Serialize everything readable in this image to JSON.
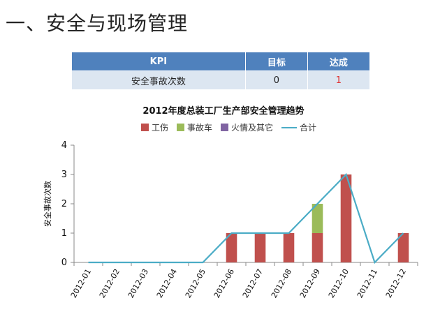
{
  "page": {
    "title": "一、安全与现场管理"
  },
  "kpi_table": {
    "headers": [
      "KPI",
      "目标",
      "达成"
    ],
    "row": {
      "kpi": "安全事故次数",
      "target": "0",
      "achieved": "1"
    }
  },
  "colors": {
    "injury": "#c0504d",
    "accident_car": "#9bbb59",
    "fire_other": "#8064a2",
    "total": "#4bacc6",
    "header_bg": "#4f81bd",
    "row_bg": "#dce6f1"
  },
  "chart_data": {
    "type": "bar",
    "stacked": true,
    "title": "2012年度总装工厂生产部安全管理趋势",
    "xlabel": "",
    "ylabel": "安全事故次数",
    "ylim": [
      0,
      4
    ],
    "yticks": [
      "0",
      "1",
      "2",
      "3",
      "4"
    ],
    "categories": [
      "2012-01",
      "2012-02",
      "2012-03",
      "2012-04",
      "2012-05",
      "2012-06",
      "2012-07",
      "2012-08",
      "2012-09",
      "2012-10",
      "2012-11",
      "2012-12"
    ],
    "series": [
      {
        "name": "工伤",
        "type": "bar",
        "values": [
          0,
          0,
          0,
          0,
          0,
          1,
          1,
          1,
          1,
          3,
          0,
          1
        ]
      },
      {
        "name": "事故车",
        "type": "bar",
        "values": [
          0,
          0,
          0,
          0,
          0,
          0,
          0,
          0,
          1,
          0,
          0,
          0
        ]
      },
      {
        "name": "火情及其它",
        "type": "bar",
        "values": [
          0,
          0,
          0,
          0,
          0,
          0,
          0,
          0,
          0,
          0,
          0,
          0
        ]
      },
      {
        "name": "合计",
        "type": "line",
        "values": [
          0,
          0,
          0,
          0,
          0,
          1,
          1,
          1,
          2,
          3,
          0,
          1
        ]
      }
    ],
    "legend_position": "top",
    "grid": false
  }
}
